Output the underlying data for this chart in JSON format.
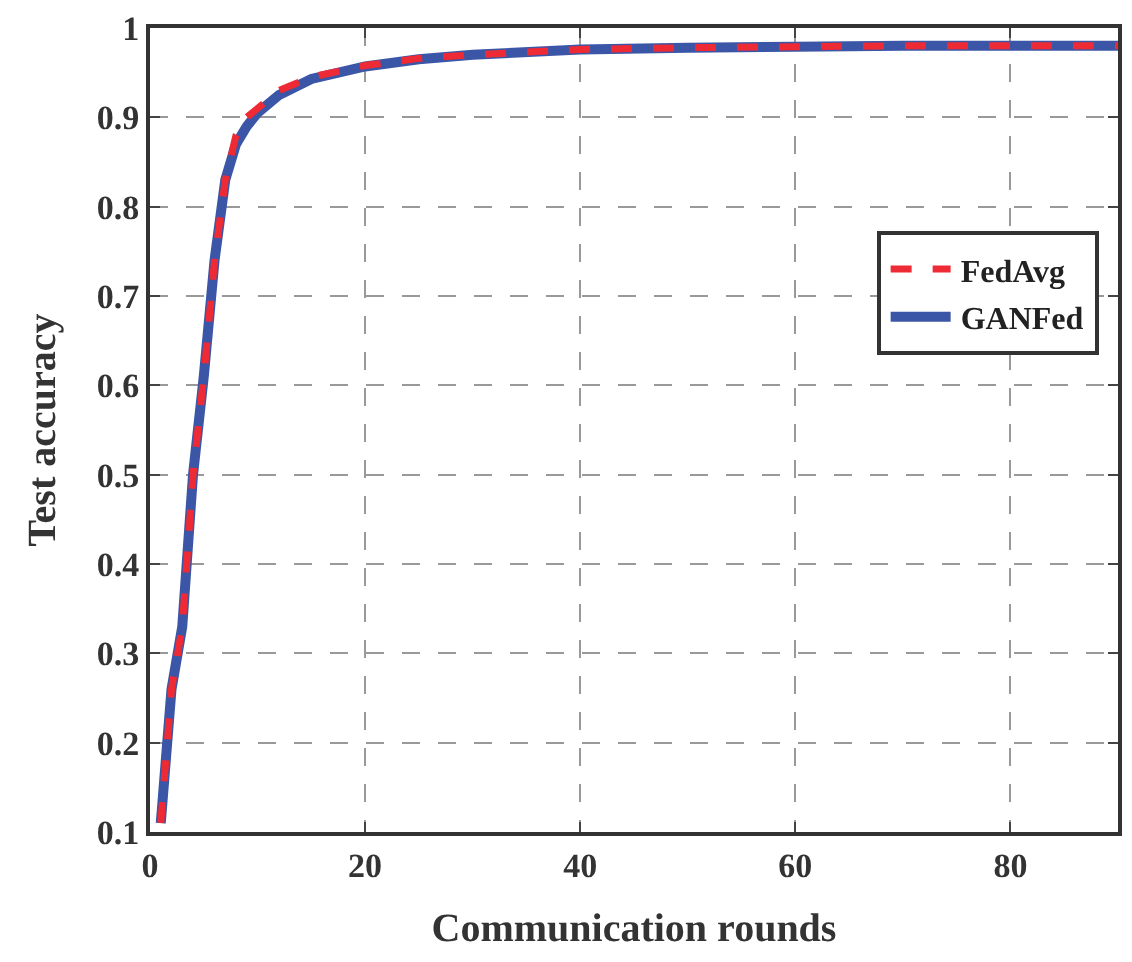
{
  "chart_data": {
    "type": "line",
    "xlabel": "Communication rounds",
    "ylabel": "Test accuracy",
    "xlim": [
      0,
      90
    ],
    "xticks": [
      0,
      20,
      40,
      60,
      80
    ],
    "ylim": [
      0.1,
      1
    ],
    "yticks": [
      0.1,
      0.2,
      0.3,
      0.4,
      0.5,
      0.6,
      0.7,
      0.8,
      0.9,
      1
    ],
    "grid": true,
    "legend": "right",
    "x": [
      1,
      2,
      3,
      4,
      5,
      6,
      7,
      8,
      9,
      10,
      12,
      15,
      20,
      25,
      30,
      40,
      50,
      60,
      70,
      80,
      90
    ],
    "series": [
      {
        "name": "FedAvg",
        "color": "#ee2a35",
        "line_style": "dashed",
        "values": [
          0.11,
          0.26,
          0.33,
          0.5,
          0.61,
          0.74,
          0.83,
          0.88,
          0.9,
          0.91,
          0.93,
          0.945,
          0.958,
          0.966,
          0.97,
          0.976,
          0.978,
          0.979,
          0.98,
          0.98,
          0.98
        ]
      },
      {
        "name": "GANFed",
        "color": "#3b56a6",
        "line_style": "solid",
        "values": [
          0.11,
          0.26,
          0.33,
          0.5,
          0.61,
          0.74,
          0.83,
          0.87,
          0.89,
          0.905,
          0.925,
          0.943,
          0.957,
          0.965,
          0.97,
          0.976,
          0.978,
          0.979,
          0.98,
          0.98,
          0.98
        ]
      }
    ]
  }
}
